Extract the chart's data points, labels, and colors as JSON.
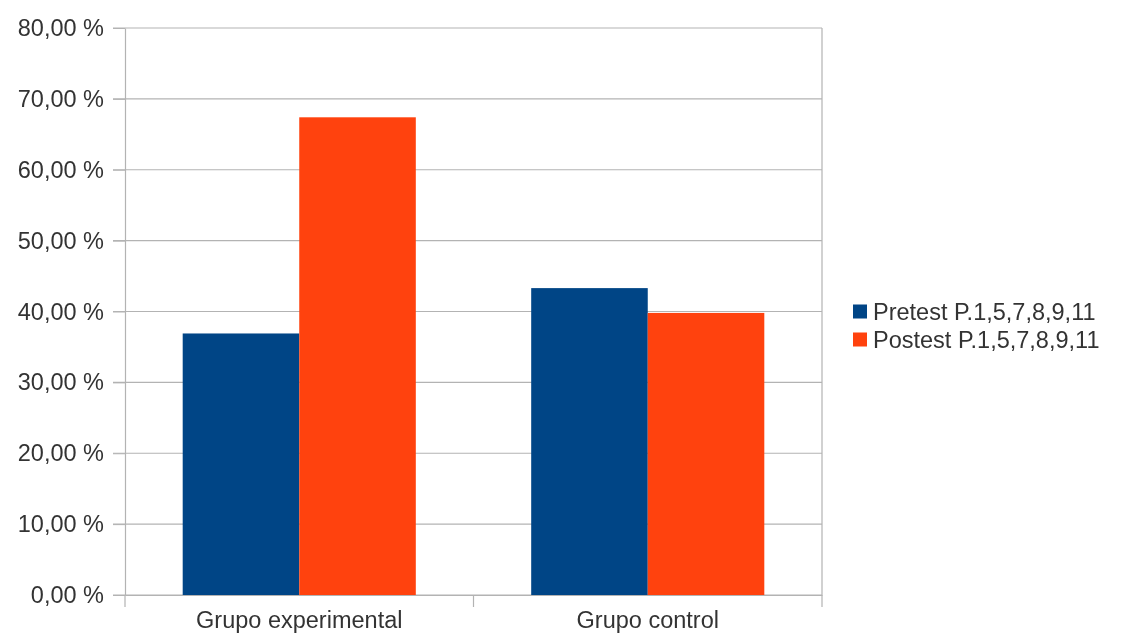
{
  "chart_data": {
    "type": "bar",
    "categories": [
      "Grupo experimental",
      "Grupo control"
    ],
    "series": [
      {
        "name": "Pretest P.1,5,7,8,9,11",
        "color": "#004586",
        "values": [
          36.9,
          43.3
        ]
      },
      {
        "name": "Postest P.1,5,7,8,9,11",
        "color": "#ff420e",
        "values": [
          67.4,
          39.8
        ]
      }
    ],
    "ylim": [
      0,
      80
    ],
    "yticks": [
      {
        "value": 0,
        "label": "0,00 %"
      },
      {
        "value": 10,
        "label": "10,00 %"
      },
      {
        "value": 20,
        "label": "20,00 %"
      },
      {
        "value": 30,
        "label": "30,00 %"
      },
      {
        "value": 40,
        "label": "40,00 %"
      },
      {
        "value": 50,
        "label": "50,00 %"
      },
      {
        "value": 60,
        "label": "60,00 %"
      },
      {
        "value": 70,
        "label": "70,00 %"
      },
      {
        "value": 80,
        "label": "80,00 %"
      }
    ],
    "grid": "y",
    "legend": "right"
  }
}
